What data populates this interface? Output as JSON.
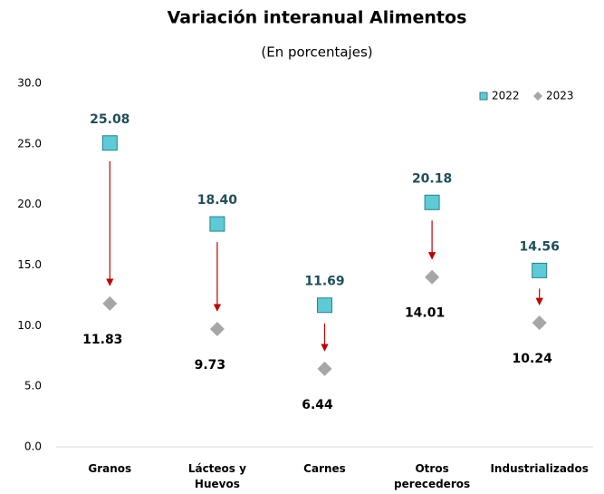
{
  "chart_data": {
    "type": "dot",
    "title": "Variación interanual Alimentos",
    "subtitle": "(En porcentajes)",
    "categories": [
      "Granos",
      "Lácteos y Huevos",
      "Carnes",
      "Otros perecederos",
      "Industrializados"
    ],
    "series": [
      {
        "name": "2022",
        "color": "#5ccbd6",
        "marker": "square",
        "values": [
          25.08,
          18.4,
          11.69,
          20.18,
          14.56
        ],
        "value_labels": [
          "25.08",
          "18.40",
          "11.69",
          "20.18",
          "14.56"
        ]
      },
      {
        "name": "2023",
        "color": "#a6a6a6",
        "marker": "diamond",
        "values": [
          11.83,
          9.73,
          6.44,
          14.01,
          10.24
        ],
        "value_labels": [
          "11.83",
          "9.73",
          "6.44",
          "14.01",
          "10.24"
        ]
      }
    ],
    "arrow_color": "#c00000",
    "ylim": [
      0,
      30
    ],
    "yticks": [
      {
        "value": 0,
        "label": "0.0"
      },
      {
        "value": 5,
        "label": "5.0"
      },
      {
        "value": 10,
        "label": "10.0"
      },
      {
        "value": 15,
        "label": "15.0"
      },
      {
        "value": 20,
        "label": "20.0"
      },
      {
        "value": 25,
        "label": "25.0"
      },
      {
        "value": 30,
        "label": "30.0"
      }
    ],
    "legend": "top-right"
  }
}
